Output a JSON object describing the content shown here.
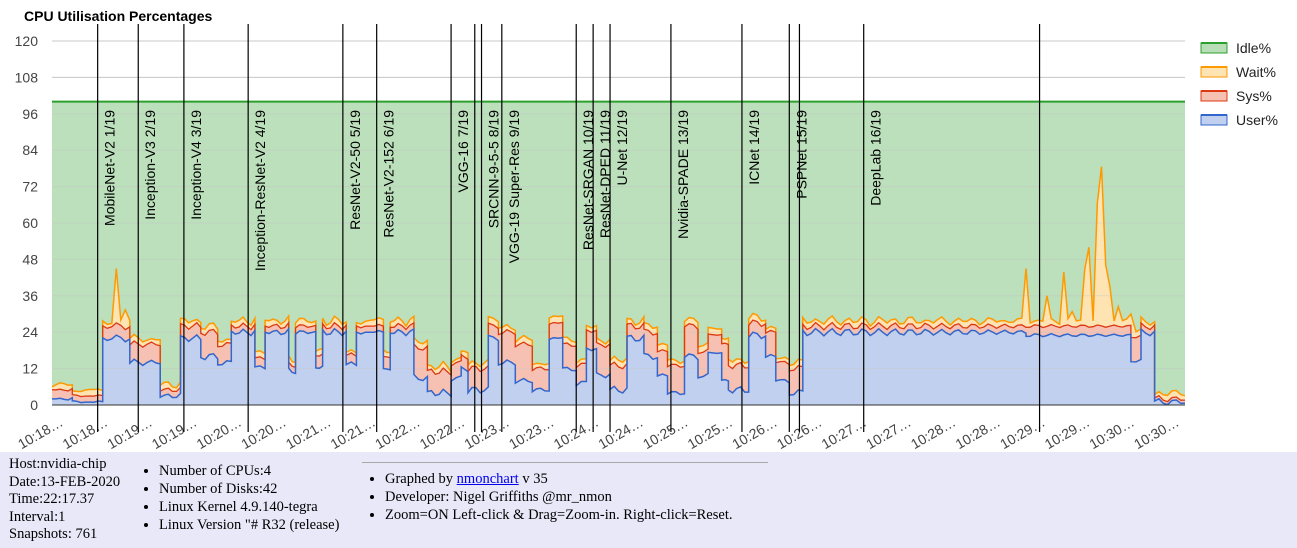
{
  "chart_data": {
    "type": "area",
    "title": "CPU Utilisation Percentages",
    "ylim": [
      0,
      120
    ],
    "yticks": [
      0,
      12,
      24,
      36,
      48,
      60,
      72,
      84,
      96,
      108,
      120
    ],
    "xticks": [
      "10:18…",
      "10:18…",
      "10:19…",
      "10:19…",
      "10:20…",
      "10:20…",
      "10:21…",
      "10:21…",
      "10:22…",
      "10:22…",
      "10:23…",
      "10:23…",
      "10:24…",
      "10:24…",
      "10:25…",
      "10:25…",
      "10:26…",
      "10:26…",
      "10:27…",
      "10:27…",
      "10:28…",
      "10:28…",
      "10:29…",
      "10:29…",
      "10:30…",
      "10:30…"
    ],
    "grid": true,
    "stacked": true,
    "legend_position": "right",
    "series": [
      {
        "name": "Idle%",
        "color": "#2ca02c",
        "fill": "#b7deb7"
      },
      {
        "name": "Wait%",
        "color": "#ff9900",
        "fill": "#ffe4b3"
      },
      {
        "name": "Sys%",
        "color": "#dc3912",
        "fill": "#f6c1b3"
      },
      {
        "name": "User%",
        "color": "#3366cc",
        "fill": "#c1d0ee"
      }
    ],
    "total": 100,
    "segments": [
      {
        "start": 0,
        "user": 2,
        "sys": 3
      },
      {
        "start": 0.6,
        "user": 1,
        "sys": 2
      },
      {
        "start": 1.5,
        "user": 22,
        "sys": 4
      },
      {
        "start": 2.3,
        "user": 14,
        "sys": 6
      },
      {
        "start": 3.2,
        "user": 3,
        "sys": 2
      },
      {
        "start": 3.8,
        "user": 22,
        "sys": 4
      },
      {
        "start": 4.4,
        "user": 16,
        "sys": 8
      },
      {
        "start": 4.9,
        "user": 14,
        "sys": 6
      },
      {
        "start": 5.3,
        "user": 24,
        "sys": 2
      },
      {
        "start": 6.0,
        "user": 12,
        "sys": 3
      },
      {
        "start": 6.3,
        "user": 24,
        "sys": 2
      },
      {
        "start": 7.0,
        "user": 11,
        "sys": 2
      },
      {
        "start": 7.2,
        "user": 24,
        "sys": 2
      },
      {
        "start": 7.8,
        "user": 12,
        "sys": 4
      },
      {
        "start": 8.0,
        "user": 24,
        "sys": 2
      },
      {
        "start": 8.7,
        "user": 13,
        "sys": 3
      },
      {
        "start": 9.0,
        "user": 24,
        "sys": 2
      },
      {
        "start": 9.8,
        "user": 12,
        "sys": 4
      },
      {
        "start": 10.0,
        "user": 24,
        "sys": 2
      },
      {
        "start": 10.7,
        "user": 9,
        "sys": 10
      },
      {
        "start": 11.1,
        "user": 4,
        "sys": 7
      },
      {
        "start": 11.8,
        "user": 9,
        "sys": 5
      },
      {
        "start": 12.1,
        "user": 12,
        "sys": 4
      },
      {
        "start": 12.3,
        "user": 5,
        "sys": 7
      },
      {
        "start": 12.9,
        "user": 22,
        "sys": 4
      },
      {
        "start": 13.2,
        "user": 14,
        "sys": 10
      },
      {
        "start": 13.7,
        "user": 8,
        "sys": 12
      },
      {
        "start": 14.2,
        "user": 5,
        "sys": 7
      },
      {
        "start": 14.7,
        "user": 22,
        "sys": 5
      },
      {
        "start": 15.1,
        "user": 12,
        "sys": 8
      },
      {
        "start": 15.5,
        "user": 7,
        "sys": 6
      },
      {
        "start": 15.8,
        "user": 18,
        "sys": 6
      },
      {
        "start": 16.1,
        "user": 10,
        "sys": 10
      },
      {
        "start": 16.5,
        "user": 5,
        "sys": 8
      },
      {
        "start": 17.0,
        "user": 22,
        "sys": 4
      },
      {
        "start": 17.5,
        "user": 16,
        "sys": 8
      },
      {
        "start": 17.9,
        "user": 10,
        "sys": 8
      },
      {
        "start": 18.2,
        "user": 4,
        "sys": 9
      },
      {
        "start": 18.7,
        "user": 16,
        "sys": 10
      },
      {
        "start": 19.1,
        "user": 10,
        "sys": 8
      },
      {
        "start": 19.4,
        "user": 17,
        "sys": 6
      },
      {
        "start": 19.8,
        "user": 8,
        "sys": 12
      },
      {
        "start": 20.0,
        "user": 5,
        "sys": 8
      },
      {
        "start": 20.6,
        "user": 23,
        "sys": 4
      },
      {
        "start": 21.1,
        "user": 16,
        "sys": 8
      },
      {
        "start": 21.4,
        "user": 8,
        "sys": 6
      },
      {
        "start": 21.8,
        "user": 4,
        "sys": 8
      },
      {
        "start": 22.2,
        "user": 24,
        "sys": 2
      },
      {
        "start": 28.8,
        "user": 23,
        "sys": 3
      },
      {
        "start": 31.9,
        "user": 14,
        "sys": 8
      },
      {
        "start": 32.2,
        "user": 24,
        "sys": 2
      },
      {
        "start": 32.6,
        "user": 1,
        "sys": 1
      }
    ],
    "spikes": [
      {
        "x": 1.9,
        "total": 45
      },
      {
        "x": 2.2,
        "total": 38
      },
      {
        "x": 27.5,
        "total": 32
      },
      {
        "x": 28.0,
        "total": 34
      },
      {
        "x": 28.8,
        "total": 45
      },
      {
        "x": 29.4,
        "total": 40
      },
      {
        "x": 29.9,
        "total": 47
      },
      {
        "x": 30.2,
        "total": 38
      },
      {
        "x": 30.5,
        "total": 52
      },
      {
        "x": 30.7,
        "total": 60
      },
      {
        "x": 30.9,
        "total": 68
      },
      {
        "x": 31.0,
        "total": 85
      },
      {
        "x": 31.2,
        "total": 55
      },
      {
        "x": 31.5,
        "total": 38
      },
      {
        "x": 31.9,
        "total": 30
      }
    ],
    "markers": [
      {
        "x": 1.35,
        "label": "MobileNet-V2 1/19"
      },
      {
        "x": 2.55,
        "label": "Inception-V3 2/19"
      },
      {
        "x": 3.9,
        "label": "Inception-V4 3/19"
      },
      {
        "x": 5.8,
        "label": "Inception-ResNet-V2 4/19"
      },
      {
        "x": 8.6,
        "label": "ResNet-V2-50 5/19"
      },
      {
        "x": 9.6,
        "label": "ResNet-V2-152 6/19"
      },
      {
        "x": 11.8,
        "label": "VGG-16 7/19"
      },
      {
        "x": 12.7,
        "label": "SRCNN-9-5-5 8/19"
      },
      {
        "x": 13.3,
        "label": "VGG-19 Super-Res 9/19"
      },
      {
        "x": 15.5,
        "label": "ResNet-SRGAN 10/19"
      },
      {
        "x": 16.0,
        "label": "ResNet-DPED 11/19"
      },
      {
        "x": 16.5,
        "label": "U-Net 12/19"
      },
      {
        "x": 18.3,
        "label": "Nvidia-SPADE 13/19"
      },
      {
        "x": 20.4,
        "label": "ICNet 14/19"
      },
      {
        "x": 21.8,
        "label": "PSPNet 15/19"
      },
      {
        "x": 24.0,
        "label": "DeepLab 16/19"
      }
    ],
    "extra_lines": [
      12.5,
      22.1,
      29.2,
      40.0
    ]
  },
  "footer": {
    "host": "Host:nvidia-chip",
    "date": "Date:13-FEB-2020",
    "time": "Time:22:17.37",
    "interval": "Interval:1",
    "snapshots": "Snapshots: 761",
    "cpus": "Number of CPUs:4",
    "disks": "Number of Disks:42",
    "kernel": "Linux Kernel 4.9.140-tegra",
    "version": "Linux Version \"# R32 (release)",
    "graphed_prefix": "Graphed by ",
    "graphed_link": "nmonchart",
    "graphed_suffix": " v 35",
    "developer": "Developer: Nigel Griffiths @mr_nmon",
    "zoom": "Zoom=ON Left-click & Drag=Zoom-in. Right-click=Reset."
  }
}
